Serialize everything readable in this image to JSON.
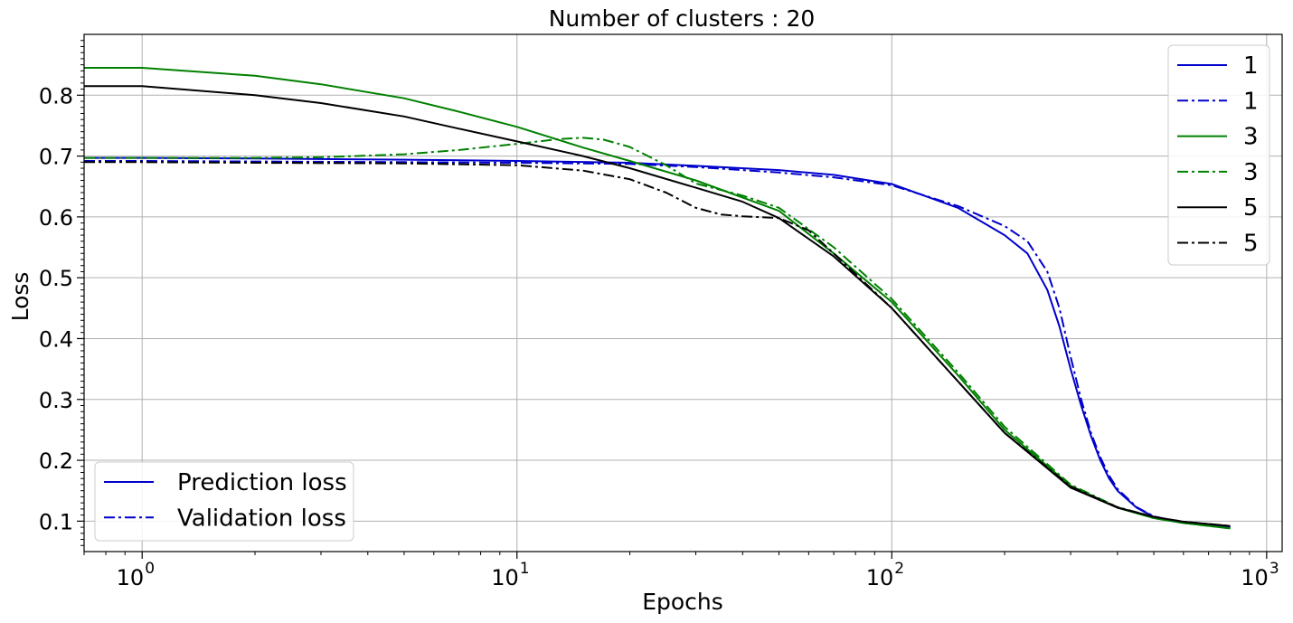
{
  "chart_data": {
    "type": "line",
    "title": "Number of clusters : 20",
    "xlabel": "Epochs",
    "ylabel": "Loss",
    "xscale": "log",
    "xlim": [
      0.7,
      1100
    ],
    "ylim": [
      0.05,
      0.9
    ],
    "xticks": [
      {
        "value": 1,
        "base": "10",
        "exp": "0"
      },
      {
        "value": 10,
        "base": "10",
        "exp": "1"
      },
      {
        "value": 100,
        "base": "10",
        "exp": "2"
      },
      {
        "value": 1000,
        "base": "10",
        "exp": "3"
      }
    ],
    "yticks": [
      0.1,
      0.2,
      0.3,
      0.4,
      0.5,
      0.6,
      0.7,
      0.8
    ],
    "grid": true,
    "series": [
      {
        "name": "1",
        "color": "#0000cc",
        "dash": "solid",
        "x": [
          0.7,
          1,
          2,
          5,
          10,
          20,
          30,
          50,
          70,
          100,
          150,
          200,
          230,
          260,
          280,
          300,
          320,
          340,
          360,
          380,
          400,
          450,
          500,
          600,
          700,
          800
        ],
        "y": [
          0.697,
          0.697,
          0.696,
          0.694,
          0.692,
          0.689,
          0.684,
          0.677,
          0.669,
          0.654,
          0.615,
          0.57,
          0.54,
          0.48,
          0.42,
          0.35,
          0.29,
          0.24,
          0.2,
          0.17,
          0.15,
          0.122,
          0.107,
          0.097,
          0.093,
          0.09
        ]
      },
      {
        "name": "1",
        "color": "#0000cc",
        "dash": "dashdot",
        "x": [
          0.7,
          1,
          2,
          5,
          10,
          20,
          30,
          50,
          70,
          100,
          150,
          200,
          230,
          260,
          280,
          300,
          320,
          340,
          360,
          380,
          400,
          450,
          500,
          600,
          700,
          800
        ],
        "y": [
          0.692,
          0.692,
          0.691,
          0.69,
          0.689,
          0.687,
          0.682,
          0.673,
          0.665,
          0.652,
          0.618,
          0.585,
          0.56,
          0.51,
          0.45,
          0.37,
          0.3,
          0.245,
          0.205,
          0.175,
          0.153,
          0.123,
          0.108,
          0.097,
          0.093,
          0.091
        ]
      },
      {
        "name": "3",
        "color": "#008000",
        "dash": "solid",
        "x": [
          0.7,
          1,
          2,
          3,
          5,
          7,
          10,
          15,
          20,
          30,
          50,
          70,
          100,
          150,
          200,
          300,
          400,
          500,
          600,
          800
        ],
        "y": [
          0.845,
          0.845,
          0.832,
          0.818,
          0.795,
          0.773,
          0.748,
          0.714,
          0.692,
          0.66,
          0.61,
          0.54,
          0.46,
          0.34,
          0.25,
          0.158,
          0.122,
          0.105,
          0.097,
          0.088
        ]
      },
      {
        "name": "3",
        "color": "#008000",
        "dash": "dashdot",
        "x": [
          0.7,
          1,
          2,
          3,
          5,
          7,
          10,
          13,
          15,
          17,
          20,
          25,
          30,
          40,
          50,
          70,
          100,
          150,
          200,
          300,
          400,
          500,
          600,
          800
        ],
        "y": [
          0.697,
          0.697,
          0.697,
          0.698,
          0.703,
          0.71,
          0.72,
          0.728,
          0.73,
          0.727,
          0.715,
          0.685,
          0.655,
          0.635,
          0.615,
          0.55,
          0.465,
          0.345,
          0.255,
          0.16,
          0.123,
          0.105,
          0.097,
          0.088
        ]
      },
      {
        "name": "5",
        "color": "#000000",
        "dash": "solid",
        "x": [
          0.7,
          1,
          2,
          3,
          5,
          7,
          10,
          15,
          20,
          30,
          40,
          50,
          70,
          100,
          150,
          200,
          300,
          400,
          500,
          600,
          800
        ],
        "y": [
          0.815,
          0.815,
          0.8,
          0.787,
          0.765,
          0.745,
          0.724,
          0.7,
          0.68,
          0.648,
          0.625,
          0.598,
          0.535,
          0.45,
          0.33,
          0.245,
          0.155,
          0.122,
          0.107,
          0.099,
          0.092
        ]
      },
      {
        "name": "5",
        "color": "#000000",
        "dash": "dashdot",
        "x": [
          0.7,
          1,
          2,
          5,
          10,
          15,
          20,
          25,
          30,
          35,
          40,
          50,
          60,
          70,
          100,
          150,
          200,
          300,
          400,
          500,
          600,
          800
        ],
        "y": [
          0.69,
          0.69,
          0.689,
          0.688,
          0.685,
          0.676,
          0.662,
          0.64,
          0.615,
          0.604,
          0.601,
          0.598,
          0.578,
          0.54,
          0.45,
          0.33,
          0.245,
          0.157,
          0.123,
          0.107,
          0.099,
          0.092
        ]
      }
    ],
    "legends": [
      {
        "placement": "upper right",
        "entries": [
          {
            "label": "1",
            "color": "#0000cc",
            "dash": "solid"
          },
          {
            "label": "1",
            "color": "#0000cc",
            "dash": "dashdot"
          },
          {
            "label": "3",
            "color": "#008000",
            "dash": "solid"
          },
          {
            "label": "3",
            "color": "#008000",
            "dash": "dashdot"
          },
          {
            "label": "5",
            "color": "#000000",
            "dash": "solid"
          },
          {
            "label": "5",
            "color": "#000000",
            "dash": "dashdot"
          }
        ]
      },
      {
        "placement": "lower left",
        "entries": [
          {
            "label": "Prediction loss",
            "color": "#0000cc",
            "dash": "solid"
          },
          {
            "label": "Validation loss",
            "color": "#0000cc",
            "dash": "dashdot"
          }
        ]
      }
    ]
  }
}
